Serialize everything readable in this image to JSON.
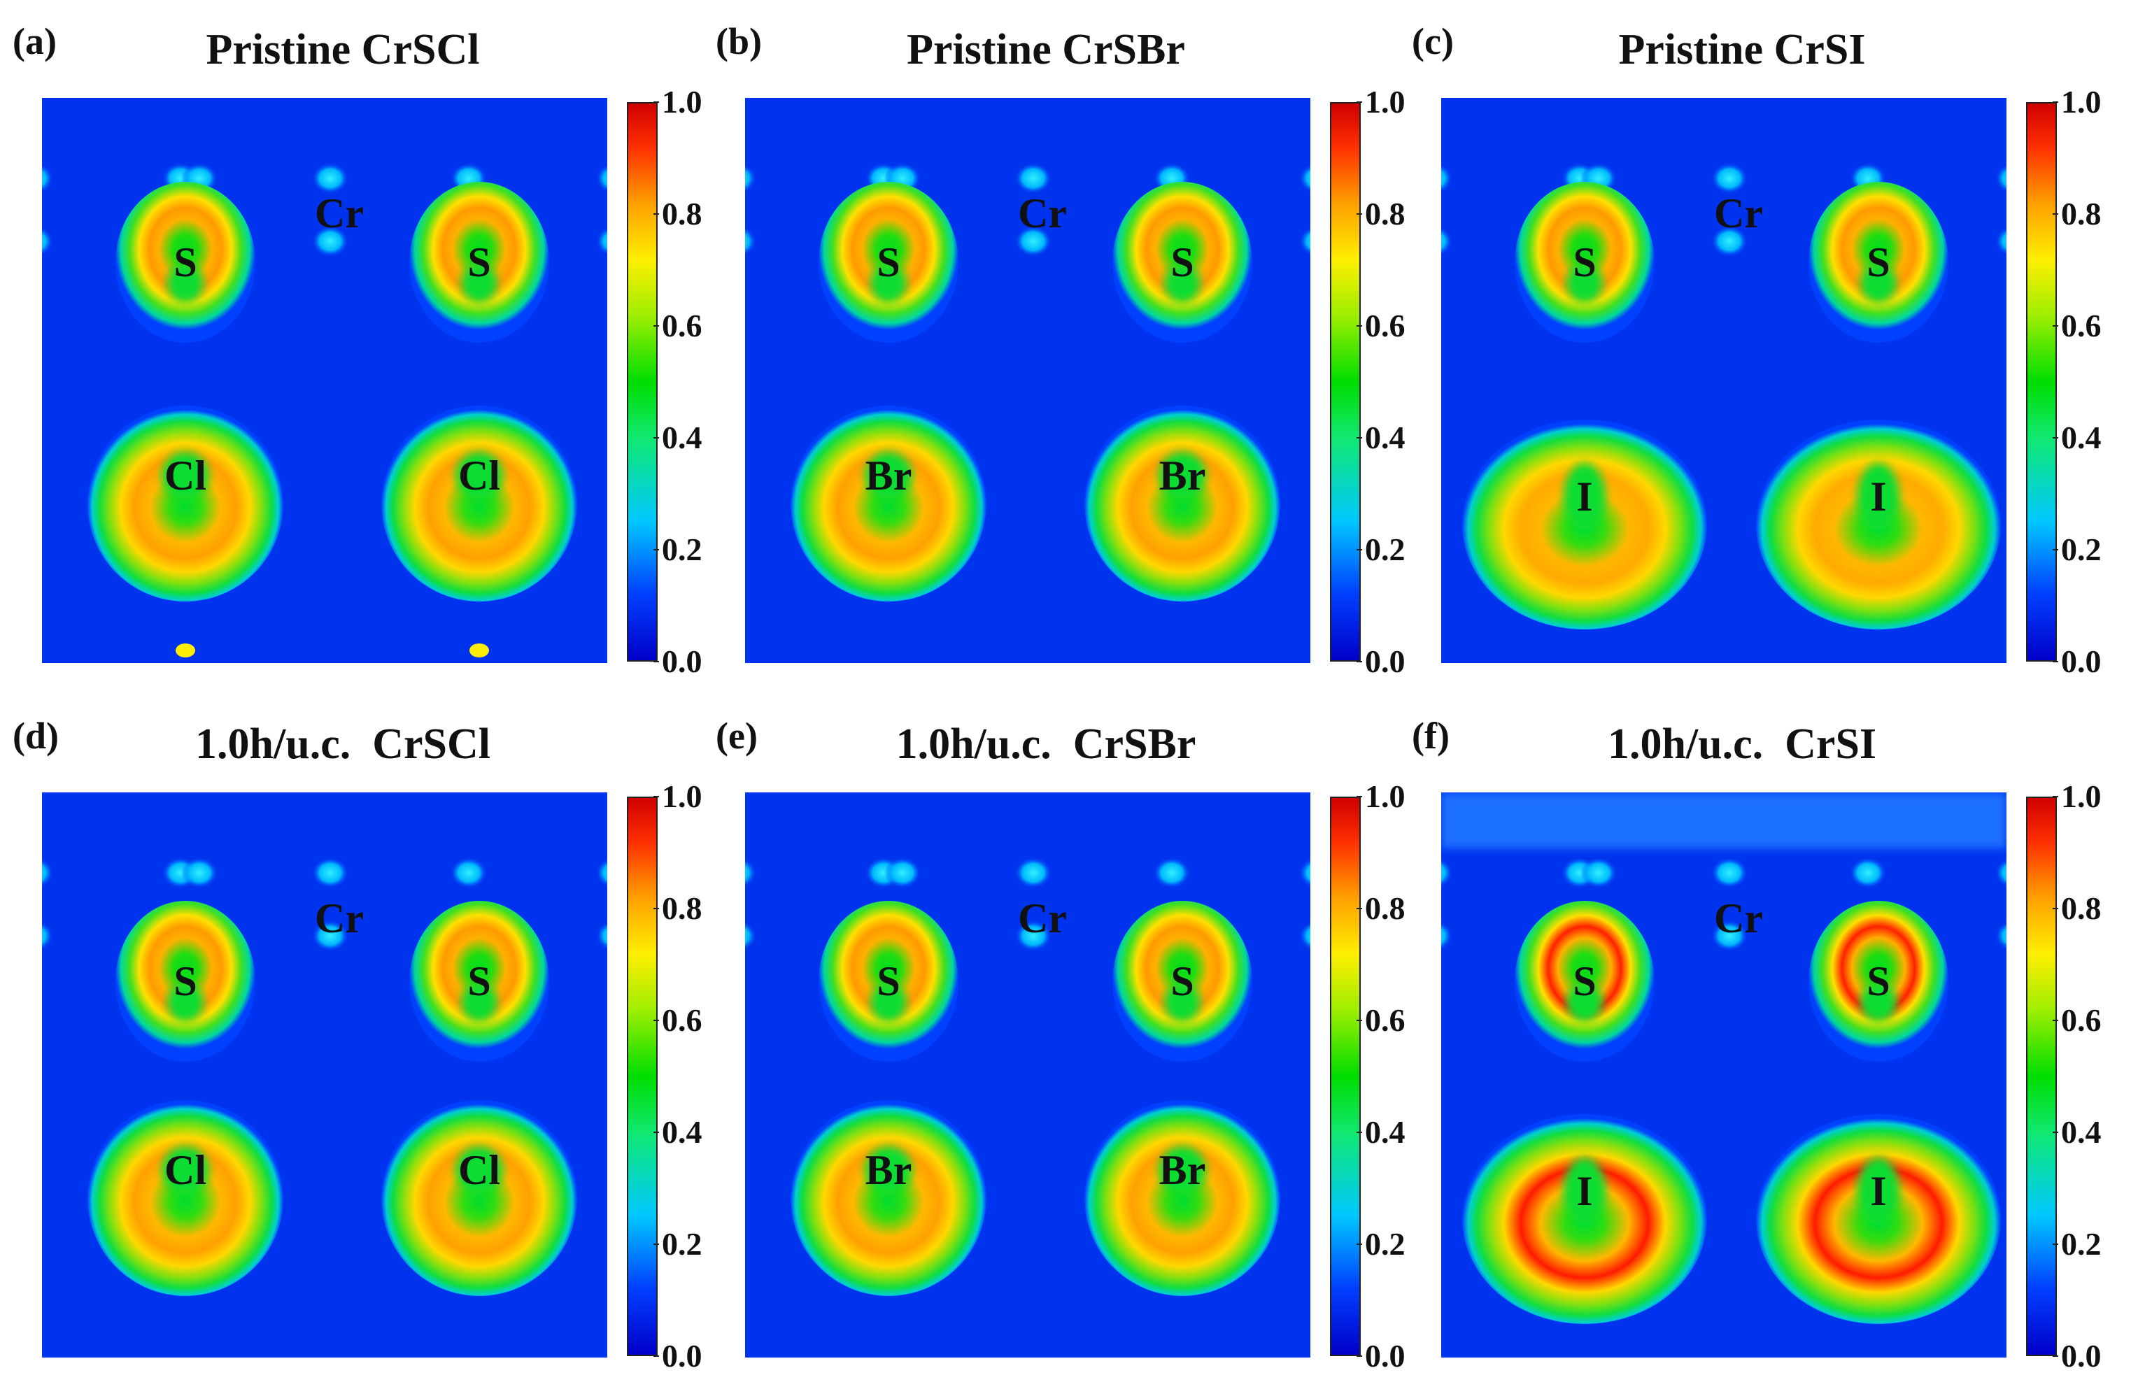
{
  "chart_data": [
    {
      "type": "heatmap",
      "label": "(a)",
      "title": "Pristine CrSCl",
      "colorbar": {
        "min": 0.0,
        "max": 1.0,
        "ticks": [
          "0.0",
          "0.2",
          "0.4",
          "0.6",
          "0.8",
          "1.0"
        ]
      },
      "atoms": [
        "Cr",
        "S",
        "S",
        "Cl",
        "Cl"
      ],
      "halogen": "Cl",
      "variant": "pristine",
      "icon": "heatmap-elf-map"
    },
    {
      "type": "heatmap",
      "label": "(b)",
      "title": "Pristine CrSBr",
      "colorbar": {
        "min": 0.0,
        "max": 1.0,
        "ticks": [
          "0.0",
          "0.2",
          "0.4",
          "0.6",
          "0.8",
          "1.0"
        ]
      },
      "atoms": [
        "Cr",
        "S",
        "S",
        "Br",
        "Br"
      ],
      "halogen": "Br",
      "variant": "pristine",
      "icon": "heatmap-elf-map"
    },
    {
      "type": "heatmap",
      "label": "(c)",
      "title": "Pristine CrSI",
      "colorbar": {
        "min": 0.0,
        "max": 1.0,
        "ticks": [
          "0.0",
          "0.2",
          "0.4",
          "0.6",
          "0.8",
          "1.0"
        ]
      },
      "atoms": [
        "Cr",
        "S",
        "S",
        "I",
        "I"
      ],
      "halogen": "I",
      "variant": "pristine",
      "icon": "heatmap-elf-map"
    },
    {
      "type": "heatmap",
      "label": "(d)",
      "title": "1.0h/u.c.  CrSCl",
      "colorbar": {
        "min": 0.0,
        "max": 1.0,
        "ticks": [
          "0.0",
          "0.2",
          "0.4",
          "0.6",
          "0.8",
          "1.0"
        ]
      },
      "atoms": [
        "Cr",
        "S",
        "S",
        "Cl",
        "Cl"
      ],
      "halogen": "Cl",
      "variant": "doped",
      "icon": "heatmap-elf-map"
    },
    {
      "type": "heatmap",
      "label": "(e)",
      "title": "1.0h/u.c.  CrSBr",
      "colorbar": {
        "min": 0.0,
        "max": 1.0,
        "ticks": [
          "0.0",
          "0.2",
          "0.4",
          "0.6",
          "0.8",
          "1.0"
        ]
      },
      "atoms": [
        "Cr",
        "S",
        "S",
        "Br",
        "Br"
      ],
      "halogen": "Br",
      "variant": "doped",
      "icon": "heatmap-elf-map"
    },
    {
      "type": "heatmap",
      "label": "(f)",
      "title": "1.0h/u.c.  CrSI",
      "colorbar": {
        "min": 0.0,
        "max": 1.0,
        "ticks": [
          "0.0",
          "0.2",
          "0.4",
          "0.6",
          "0.8",
          "1.0"
        ]
      },
      "atoms": [
        "Cr",
        "S",
        "S",
        "I",
        "I"
      ],
      "halogen": "I",
      "variant": "doped",
      "icon": "heatmap-elf-map"
    }
  ]
}
